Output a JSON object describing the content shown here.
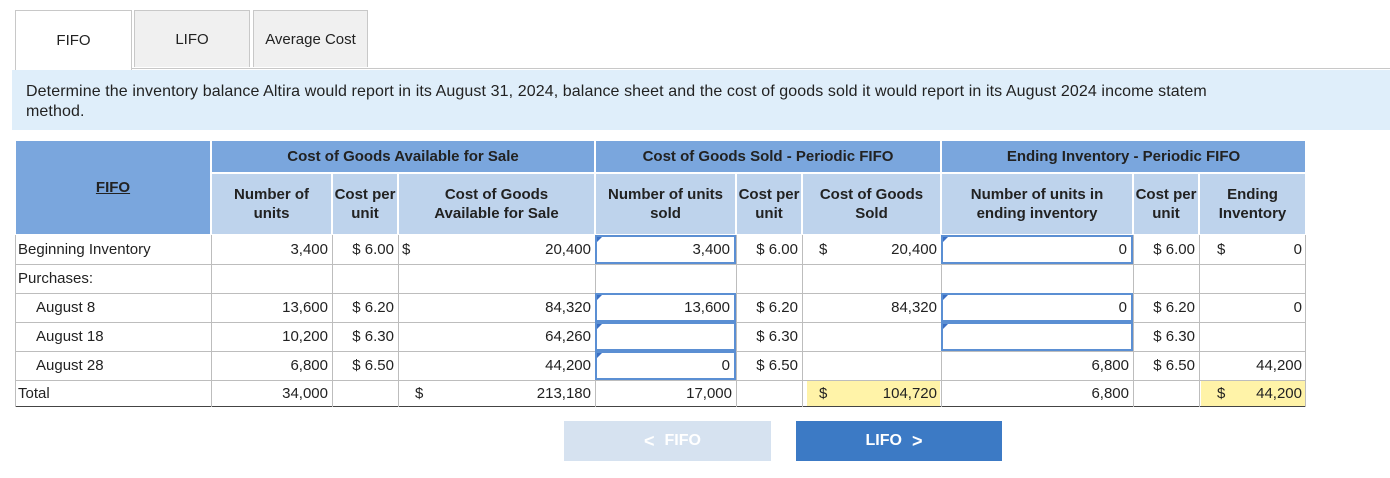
{
  "tabs": [
    {
      "label": "FIFO",
      "active": true
    },
    {
      "label": "LIFO",
      "active": false
    },
    {
      "label": "Average Cost",
      "active": false
    }
  ],
  "instruction": "Determine the inventory balance Altira would report in its August 31, 2024, balance sheet and the cost of goods sold it would report in its August 2024 income statem\nmethod.",
  "table": {
    "corner_link": "FIFO",
    "group_headers": {
      "available": "Cost of Goods Available for Sale",
      "sold": "Cost of Goods Sold - Periodic FIFO",
      "ending": "Ending Inventory - Periodic FIFO"
    },
    "sub_headers": {
      "avail_units": "Number of units",
      "avail_cost": "Cost per unit",
      "avail_total": "Cost of Goods Available for Sale",
      "sold_units": "Number of units sold",
      "sold_cost": "Cost per unit",
      "sold_total": "Cost of Goods Sold",
      "end_units": "Number of units in ending inventory",
      "end_cost": "Cost per unit",
      "end_total": "Ending Inventory"
    },
    "rows": {
      "beginning": {
        "label": "Beginning Inventory",
        "avail_units": "3,400",
        "avail_cost": "$ 6.00",
        "avail_dollar": "$",
        "avail_total": "20,400",
        "sold_units": "3,400",
        "sold_cost": "$ 6.00",
        "sold_dollar": "$",
        "sold_total": "20,400",
        "end_units": "0",
        "end_cost": "$ 6.00",
        "end_dollar": "$",
        "end_total": "0"
      },
      "purchases": {
        "label": "Purchases:"
      },
      "aug8": {
        "label": "August 8",
        "avail_units": "13,600",
        "avail_cost": "$ 6.20",
        "avail_total": "84,320",
        "sold_units": "13,600",
        "sold_cost": "$ 6.20",
        "sold_total": "84,320",
        "end_units": "0",
        "end_cost": "$ 6.20",
        "end_total": "0"
      },
      "aug18": {
        "label": "August 18",
        "avail_units": "10,200",
        "avail_cost": "$ 6.30",
        "avail_total": "64,260",
        "sold_units": "",
        "sold_cost": "$ 6.30",
        "sold_total": "",
        "end_units": "",
        "end_cost": "$ 6.30",
        "end_total": ""
      },
      "aug28": {
        "label": "August 28",
        "avail_units": "6,800",
        "avail_cost": "$ 6.50",
        "avail_total": "44,200",
        "sold_units": "0",
        "sold_cost": "$ 6.50",
        "sold_total": "",
        "end_units": "6,800",
        "end_cost": "$ 6.50",
        "end_total": "44,200"
      },
      "total": {
        "label": "Total",
        "avail_units": "34,000",
        "avail_dollar": "$",
        "avail_total": "213,180",
        "sold_units": "17,000",
        "sold_dollar": "$",
        "sold_total": "104,720",
        "end_units": "6,800",
        "end_dollar": "$",
        "end_total": "44,200"
      }
    }
  },
  "nav": {
    "prev_label": "FIFO",
    "next_label": "LIFO",
    "prev_chevron": "<",
    "next_chevron": ">"
  },
  "colors": {
    "header_main": "#7aa6dd",
    "header_sub": "#bed3ec",
    "input_border": "#5b8fd3",
    "highlight": "#fff3a8",
    "next_button": "#3c7ac5",
    "prev_button_disabled": "#d6e2f0"
  }
}
